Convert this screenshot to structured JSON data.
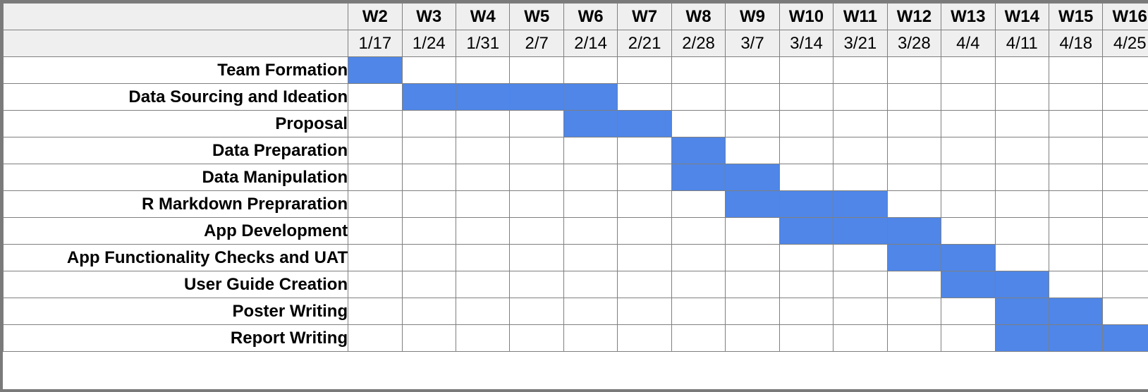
{
  "colors": {
    "bar": "#4f86e8",
    "header_bg": "#efefef",
    "grid": "#7f7f7f"
  },
  "weeks": [
    {
      "label": "W2",
      "date": "1/17"
    },
    {
      "label": "W3",
      "date": "1/24"
    },
    {
      "label": "W4",
      "date": "1/31"
    },
    {
      "label": "W5",
      "date": "2/7"
    },
    {
      "label": "W6",
      "date": "2/14"
    },
    {
      "label": "W7",
      "date": "2/21"
    },
    {
      "label": "W8",
      "date": "2/28"
    },
    {
      "label": "W9",
      "date": "3/7"
    },
    {
      "label": "W10",
      "date": "3/14"
    },
    {
      "label": "W11",
      "date": "3/21"
    },
    {
      "label": "W12",
      "date": "3/28"
    },
    {
      "label": "W13",
      "date": "4/4"
    },
    {
      "label": "W14",
      "date": "4/11"
    },
    {
      "label": "W15",
      "date": "4/18"
    },
    {
      "label": "W16",
      "date": "4/25"
    }
  ],
  "tasks": [
    {
      "name": "Team Formation",
      "weeks": [
        "W2"
      ]
    },
    {
      "name": "Data Sourcing and Ideation",
      "weeks": [
        "W3",
        "W4",
        "W5",
        "W6"
      ]
    },
    {
      "name": "Proposal",
      "weeks": [
        "W6",
        "W7"
      ]
    },
    {
      "name": "Data Preparation",
      "weeks": [
        "W8"
      ]
    },
    {
      "name": "Data Manipulation",
      "weeks": [
        "W8",
        "W9"
      ]
    },
    {
      "name": "R Markdown Prepraration",
      "weeks": [
        "W9",
        "W10",
        "W11"
      ]
    },
    {
      "name": "App Development",
      "weeks": [
        "W10",
        "W11",
        "W12"
      ]
    },
    {
      "name": "App Functionality Checks and UAT",
      "weeks": [
        "W12",
        "W13"
      ]
    },
    {
      "name": "User Guide Creation",
      "weeks": [
        "W13",
        "W14"
      ]
    },
    {
      "name": "Poster Writing",
      "weeks": [
        "W14",
        "W15"
      ]
    },
    {
      "name": "Report Writing",
      "weeks": [
        "W14",
        "W15",
        "W16"
      ]
    }
  ]
}
